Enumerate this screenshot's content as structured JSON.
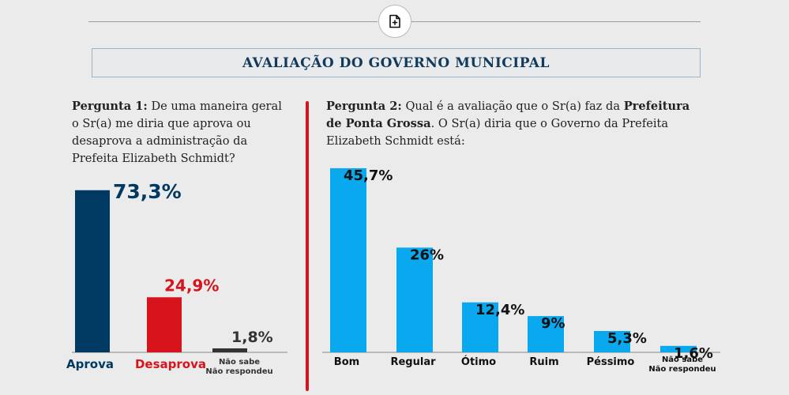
{
  "header": {
    "title": "AVALIAÇÃO DO GOVERNO MUNICIPAL",
    "doc_icon": "document-plus-icon"
  },
  "question1": {
    "label": "Pergunta 1:",
    "text": "De uma maneira geral o Sr(a) me diria que aprova ou desaprova a administração da Prefeita Elizabeth Schmidt?"
  },
  "question2": {
    "label": "Pergunta 2:",
    "text_before": "Qual é a avaliação que o Sr(a) faz da",
    "bold": "Prefeitura de Ponta Grossa",
    "text_after": ". O Sr(a) diria que o Governo da Prefeita Elizabeth Schmidt está:"
  },
  "colors": {
    "aprova": "#003a63",
    "desaprova": "#d7141c",
    "nao_sabe": "#333333",
    "q2_bars": "#0aa9ef",
    "divider": "#d7141c"
  },
  "chart_data": [
    {
      "type": "bar",
      "categories": [
        "Aprova",
        "Desaprova",
        "Não sabe\nNão respondeu"
      ],
      "values": [
        73.3,
        24.9,
        1.8
      ],
      "labels": [
        "73,3%",
        "24,9%",
        "1,8%"
      ],
      "ylim": [
        0,
        80
      ],
      "title": "",
      "xlabel": "",
      "ylabel": ""
    },
    {
      "type": "bar",
      "categories": [
        "Bom",
        "Regular",
        "Ótimo",
        "Ruim",
        "Péssimo",
        "Não sabe\nNão respondeu"
      ],
      "values": [
        45.7,
        26,
        12.4,
        9,
        5.3,
        1.6
      ],
      "labels": [
        "45,7%",
        "26%",
        "12,4%",
        "9%",
        "5,3%",
        "1,6%"
      ],
      "ylim": [
        0,
        50
      ],
      "title": "",
      "xlabel": "",
      "ylabel": ""
    }
  ]
}
